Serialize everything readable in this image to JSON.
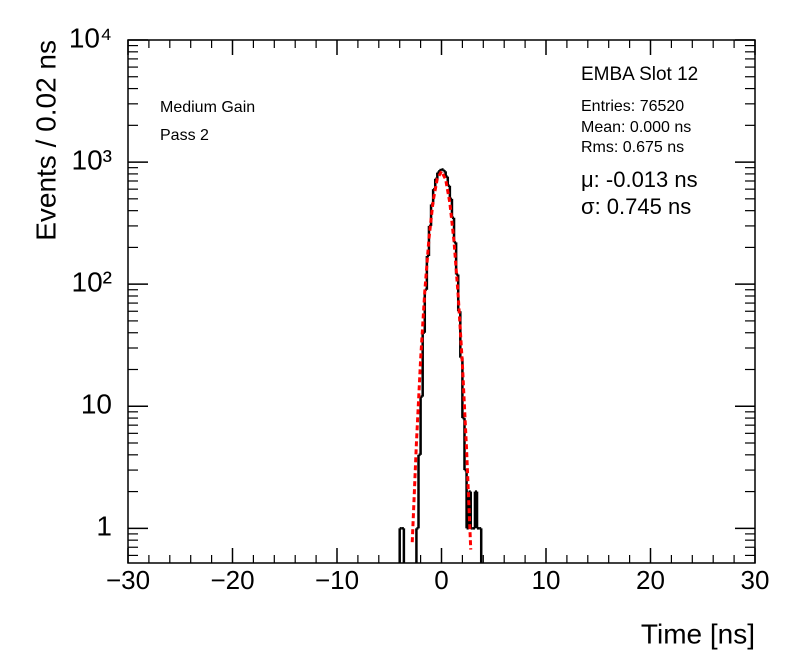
{
  "chart_data": {
    "type": "histogram",
    "xlabel": "Time [ns]",
    "ylabel": "Events / 0.02 ns",
    "annotations": [
      "EMBA Slot 12",
      "Entries: 76520",
      "Mean: 0.000 ns",
      "Rms: 0.675 ns",
      "μ: -0.013 ns",
      "σ: 0.745 ns",
      "Medium Gain",
      "Pass 2"
    ],
    "bins": [
      -4.2,
      -4.0,
      -3.8,
      -3.6,
      -3.4,
      -3.2,
      -3.0,
      -2.8,
      -2.6,
      -2.4,
      -2.2,
      -2.0,
      -1.8,
      -1.6,
      -1.4,
      -1.2,
      -1.0,
      -0.8,
      -0.6,
      -0.4,
      -0.2,
      0.0,
      0.2,
      0.4,
      0.6,
      0.8,
      1.0,
      1.2,
      1.4,
      1.6,
      1.8,
      2.0,
      2.2,
      2.4,
      2.6,
      2.8,
      3.0,
      3.2,
      3.4,
      3.6,
      3.8,
      4.0
    ],
    "counts": [
      0,
      1,
      1,
      0,
      0,
      0,
      0,
      0,
      0,
      1,
      4,
      12,
      40,
      90,
      170,
      300,
      450,
      600,
      730,
      820,
      860,
      870,
      840,
      760,
      640,
      500,
      350,
      220,
      120,
      60,
      25,
      8,
      3,
      1,
      2,
      1,
      1,
      2,
      1,
      1,
      0
    ],
    "color": "#000000",
    "fit": {
      "type": "line",
      "color": "#ff0000",
      "dashed": true,
      "x": [
        -2.8,
        -2.4,
        -2.0,
        -1.6,
        -1.2,
        -0.8,
        -0.4,
        0.0,
        0.4,
        0.8,
        1.2,
        1.6,
        2.0,
        2.4,
        2.8
      ],
      "values": [
        0.77,
        5.0,
        24,
        87,
        236,
        481,
        734,
        840,
        720,
        463,
        223,
        80,
        22,
        4.4,
        0.67
      ]
    },
    "xlim": [
      -30,
      30
    ],
    "xticks": [
      {
        "value": -30,
        "label": "−30"
      },
      {
        "value": -20,
        "label": "−20"
      },
      {
        "value": -10,
        "label": "−10"
      },
      0,
      10,
      20,
      30
    ],
    "ylim": [
      0.52,
      10000
    ],
    "yticks": [
      1,
      10,
      {
        "value": 100,
        "label": "10²"
      },
      {
        "value": 1000,
        "label": "10³"
      },
      {
        "value": 10000,
        "label": "10⁴"
      }
    ],
    "log_y": true
  }
}
